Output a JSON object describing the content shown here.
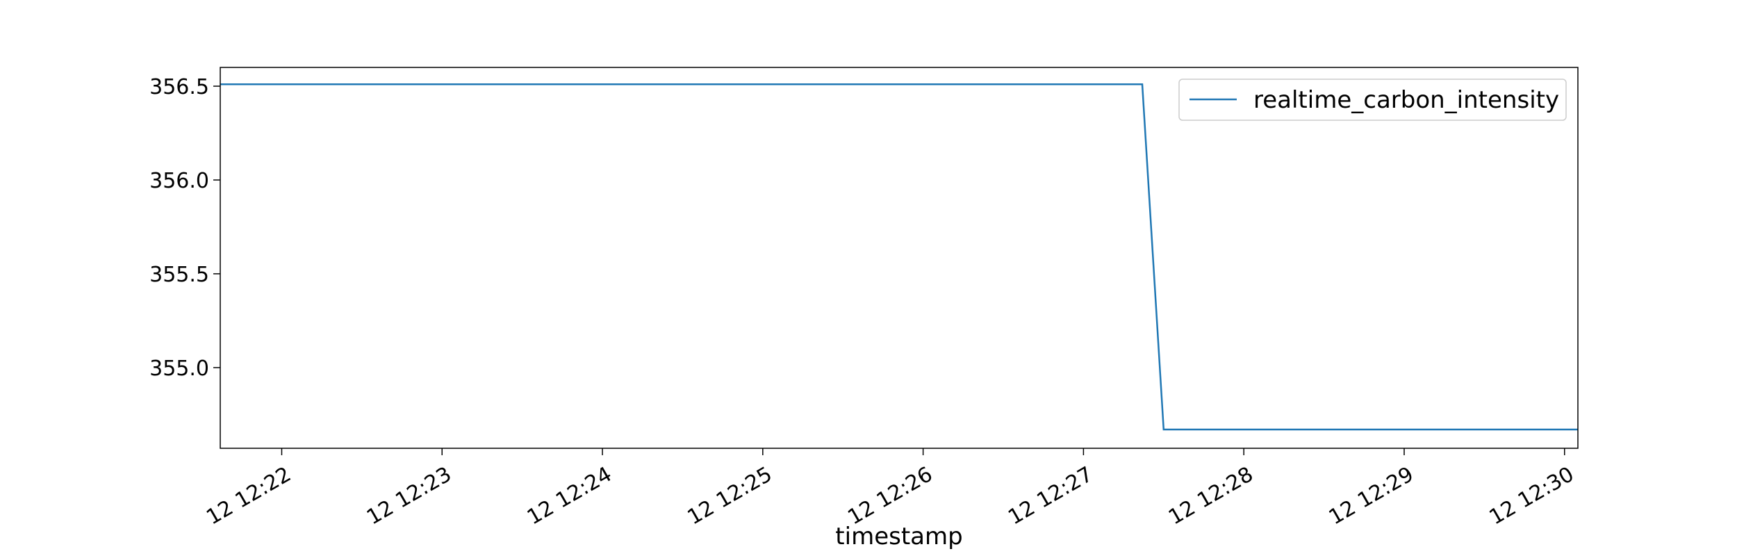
{
  "chart_data": {
    "type": "line",
    "xlabel": "timestamp",
    "ylabel": "",
    "title": "",
    "x_tick_labels": [
      "12 12:22",
      "12 12:23",
      "12 12:24",
      "12 12:25",
      "12 12:26",
      "12 12:27",
      "12 12:28",
      "12 12:29",
      "12 12:30"
    ],
    "y_tick_labels": [
      "355.0",
      "355.5",
      "356.0",
      "356.5"
    ],
    "y_ticks": [
      355.0,
      355.5,
      356.0,
      356.5
    ],
    "xlim": [
      "12:21:37",
      "12:30:05"
    ],
    "ylim": [
      354.57,
      356.6
    ],
    "grid": false,
    "legend": {
      "placement": "top-right",
      "entries": [
        "realtime_carbon_intensity"
      ]
    },
    "series": [
      {
        "name": "realtime_carbon_intensity",
        "color": "#1f77b4",
        "x": [
          "12:21:37",
          "12:27:22",
          "12:27:30",
          "12:30:05"
        ],
        "y": [
          356.51,
          356.51,
          354.67,
          354.67
        ]
      }
    ]
  }
}
